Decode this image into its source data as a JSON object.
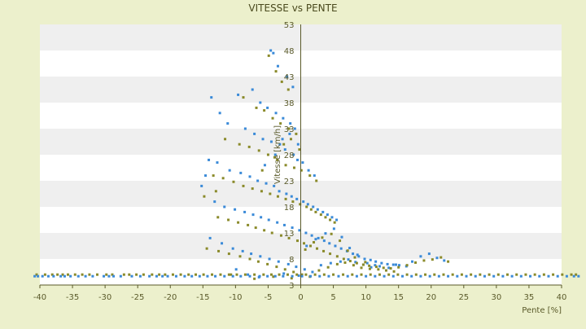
{
  "chart_data": {
    "type": "scatter",
    "title": "VITESSE vs PENTE",
    "xlabel": "Pente [%]",
    "ylabel": "Vitesse [km/h]",
    "xlim": [
      -40,
      40
    ],
    "ylim": [
      3,
      53
    ],
    "x_ticks": [
      "-40",
      "-35",
      "-30",
      "-25",
      "-20",
      "-15",
      "-10",
      "-5",
      "0",
      "5",
      "10",
      "15",
      "20",
      "25",
      "30",
      "35",
      "40"
    ],
    "y_ticks": [
      "3",
      "8",
      "13",
      "18",
      "23",
      "28",
      "33",
      "38",
      "43",
      "48",
      "53"
    ],
    "grid": "horizontal bands",
    "colors": {
      "background": "#ecf0cc",
      "plot_band_light": "#ffffff",
      "plot_band_dark": "#efefef",
      "axis": "#5a5a2a",
      "series_blue": "#3a8ad8",
      "series_olive": "#8a8a2a"
    },
    "series": [
      {
        "color": "#3a8ad8",
        "points": [
          [
            -4.6,
            48
          ],
          [
            -4.2,
            47.5
          ],
          [
            -3.5,
            45
          ],
          [
            -2.1,
            43
          ],
          [
            -1.2,
            41
          ],
          [
            -13.7,
            39
          ],
          [
            -9.6,
            39.5
          ],
          [
            -7.4,
            40.5
          ],
          [
            -6.2,
            38
          ],
          [
            -5.1,
            37
          ],
          [
            -3.8,
            36
          ],
          [
            -2.7,
            35
          ],
          [
            -1.6,
            34
          ],
          [
            -0.9,
            33
          ],
          [
            -12.4,
            36
          ],
          [
            -11.2,
            34
          ],
          [
            -8.5,
            33
          ],
          [
            -7.1,
            32
          ],
          [
            -5.8,
            31
          ],
          [
            -4.5,
            30.5
          ],
          [
            -3.2,
            30
          ],
          [
            -2.4,
            29
          ],
          [
            -1.1,
            28
          ],
          [
            -0.5,
            27
          ],
          [
            0.3,
            26.5
          ],
          [
            1.2,
            25
          ],
          [
            2.1,
            24
          ],
          [
            -14.1,
            27
          ],
          [
            -12.8,
            26.5
          ],
          [
            -10.9,
            25
          ],
          [
            -9.2,
            24.5
          ],
          [
            -7.8,
            23.8
          ],
          [
            -6.6,
            23
          ],
          [
            -5.3,
            22.5
          ],
          [
            -4.1,
            22
          ],
          [
            -3.3,
            21
          ],
          [
            -2.2,
            20.5
          ],
          [
            -1.4,
            20
          ],
          [
            -0.6,
            19.5
          ],
          [
            0.4,
            19
          ],
          [
            1.1,
            18.5
          ],
          [
            1.9,
            18
          ],
          [
            2.6,
            17.5
          ],
          [
            3.4,
            17
          ],
          [
            4.1,
            16.5
          ],
          [
            4.8,
            16
          ],
          [
            5.5,
            15.5
          ],
          [
            -13.2,
            19
          ],
          [
            -11.7,
            18
          ],
          [
            -10.1,
            17.5
          ],
          [
            -8.6,
            17
          ],
          [
            -7.3,
            16.5
          ],
          [
            -6.1,
            16
          ],
          [
            -4.9,
            15.5
          ],
          [
            -3.6,
            15
          ],
          [
            -2.5,
            14.5
          ],
          [
            -1.3,
            14
          ],
          [
            -0.2,
            13.5
          ],
          [
            0.8,
            13
          ],
          [
            1.7,
            12.5
          ],
          [
            2.7,
            12
          ],
          [
            3.6,
            11.5
          ],
          [
            4.4,
            11
          ],
          [
            5.3,
            10.5
          ],
          [
            6.2,
            10
          ],
          [
            7.1,
            9.5
          ],
          [
            8.0,
            9
          ],
          [
            8.9,
            8.5
          ],
          [
            9.8,
            8
          ],
          [
            10.7,
            7.8
          ],
          [
            11.5,
            7.5
          ],
          [
            12.4,
            7.2
          ],
          [
            13.3,
            7
          ],
          [
            14.2,
            6.9
          ],
          [
            15.1,
            6.8
          ],
          [
            16.2,
            6.6
          ],
          [
            17.1,
            7.5
          ],
          [
            18.4,
            8.5
          ],
          [
            19.7,
            9
          ],
          [
            20.9,
            8.2
          ],
          [
            22.0,
            7.7
          ],
          [
            -13.9,
            12
          ],
          [
            -12.1,
            11
          ],
          [
            -10.4,
            10
          ],
          [
            -8.9,
            9.5
          ],
          [
            -7.6,
            9
          ],
          [
            -6.2,
            8.5
          ],
          [
            -4.8,
            8
          ],
          [
            -3.4,
            7.5
          ],
          [
            -1.9,
            7
          ],
          [
            -0.7,
            6.5
          ],
          [
            0.6,
            6
          ],
          [
            1.8,
            5.5
          ],
          [
            3.1,
            6.8
          ],
          [
            4.6,
            7.2
          ],
          [
            6.1,
            7.5
          ],
          [
            7.3,
            7.9
          ],
          [
            8.4,
            7.4
          ],
          [
            9.6,
            6.9
          ],
          [
            10.8,
            6.4
          ],
          [
            12.1,
            6.6
          ],
          [
            13.5,
            6.3
          ],
          [
            14.6,
            6.9
          ],
          [
            -9.9,
            6
          ],
          [
            -8.1,
            5
          ],
          [
            -6.4,
            4.5
          ],
          [
            -2.6,
            5.2
          ],
          [
            -0.3,
            4.8
          ],
          [
            0.9,
            10.5
          ],
          [
            2.3,
            11.8
          ],
          [
            3.8,
            12.9
          ],
          [
            5.1,
            13.8
          ],
          [
            6.3,
            12.2
          ],
          [
            7.5,
            10.1
          ],
          [
            8.7,
            8.8
          ],
          [
            10.2,
            7.2
          ],
          [
            11.4,
            6.8
          ],
          [
            -15.2,
            22
          ],
          [
            -14.6,
            24
          ],
          [
            -5.5,
            26
          ],
          [
            -3.9,
            28
          ],
          [
            -2.8,
            31
          ],
          [
            -1.7,
            32
          ],
          [
            -0.4,
            30
          ]
        ]
      },
      {
        "color": "#8a8a2a",
        "points": [
          [
            -4.9,
            47
          ],
          [
            -3.8,
            44
          ],
          [
            -2.9,
            42
          ],
          [
            -1.9,
            40.5
          ],
          [
            -8.8,
            39
          ],
          [
            -6.8,
            37
          ],
          [
            -5.6,
            36.5
          ],
          [
            -4.3,
            35
          ],
          [
            -3.1,
            34
          ],
          [
            -1.8,
            33
          ],
          [
            -0.7,
            32
          ],
          [
            -11.6,
            31
          ],
          [
            -9.4,
            30
          ],
          [
            -7.9,
            29.5
          ],
          [
            -6.4,
            28.8
          ],
          [
            -5.0,
            28
          ],
          [
            -3.6,
            27
          ],
          [
            -2.3,
            26
          ],
          [
            -1.0,
            25.5
          ],
          [
            0.1,
            25
          ],
          [
            1.4,
            24
          ],
          [
            2.4,
            23
          ],
          [
            -13.4,
            24
          ],
          [
            -11.9,
            23.5
          ],
          [
            -10.3,
            22.8
          ],
          [
            -8.8,
            22
          ],
          [
            -7.4,
            21.5
          ],
          [
            -6.0,
            21
          ],
          [
            -4.7,
            20.5
          ],
          [
            -3.5,
            20
          ],
          [
            -2.3,
            19.5
          ],
          [
            -1.2,
            19
          ],
          [
            -0.1,
            18.5
          ],
          [
            0.9,
            18
          ],
          [
            1.6,
            17.5
          ],
          [
            2.3,
            17
          ],
          [
            3.1,
            16.5
          ],
          [
            3.8,
            16
          ],
          [
            4.5,
            15.5
          ],
          [
            5.2,
            15
          ],
          [
            -12.7,
            16
          ],
          [
            -11.1,
            15.5
          ],
          [
            -9.6,
            15
          ],
          [
            -8.1,
            14.5
          ],
          [
            -6.9,
            14
          ],
          [
            -5.6,
            13.5
          ],
          [
            -4.4,
            13
          ],
          [
            -3.0,
            12.5
          ],
          [
            -1.8,
            12
          ],
          [
            -0.5,
            11.5
          ],
          [
            0.5,
            11
          ],
          [
            1.5,
            10.5
          ],
          [
            2.5,
            10
          ],
          [
            3.5,
            9.5
          ],
          [
            4.5,
            9
          ],
          [
            5.6,
            8.5
          ],
          [
            6.6,
            8
          ],
          [
            7.6,
            7.6
          ],
          [
            8.6,
            7.2
          ],
          [
            9.6,
            6.9
          ],
          [
            10.5,
            6.7
          ],
          [
            11.6,
            6.5
          ],
          [
            12.7,
            6.3
          ],
          [
            13.8,
            6.2
          ],
          [
            15.0,
            6.4
          ],
          [
            16.3,
            6.8
          ],
          [
            17.6,
            7.3
          ],
          [
            18.9,
            7.7
          ],
          [
            20.2,
            7.9
          ],
          [
            21.5,
            8.3
          ],
          [
            22.6,
            7.5
          ],
          [
            -14.4,
            10
          ],
          [
            -12.6,
            9.5
          ],
          [
            -11.0,
            9
          ],
          [
            -9.3,
            8.5
          ],
          [
            -7.8,
            8
          ],
          [
            -6.5,
            7.5
          ],
          [
            -5.1,
            7
          ],
          [
            -3.7,
            6.5
          ],
          [
            -2.4,
            6
          ],
          [
            -1.1,
            5.5
          ],
          [
            0.2,
            5
          ],
          [
            1.4,
            4.6
          ],
          [
            2.8,
            5.8
          ],
          [
            4.2,
            6.4
          ],
          [
            5.6,
            7
          ],
          [
            6.8,
            7.3
          ],
          [
            8.1,
            6.8
          ],
          [
            9.3,
            6.3
          ],
          [
            10.6,
            6.1
          ],
          [
            11.9,
            6.0
          ],
          [
            13.1,
            5.8
          ],
          [
            14.3,
            5.6
          ],
          [
            -10.7,
            5
          ],
          [
            -7.1,
            4.2
          ],
          [
            -4.2,
            4.6
          ],
          [
            -1.4,
            4.3
          ],
          [
            0.7,
            9.8
          ],
          [
            2.0,
            11.2
          ],
          [
            3.3,
            12.1
          ],
          [
            4.7,
            12.8
          ],
          [
            6.0,
            11.5
          ],
          [
            7.2,
            9.6
          ],
          [
            8.3,
            8.3
          ],
          [
            9.9,
            7.4
          ],
          [
            -14.8,
            20
          ],
          [
            -13.0,
            21
          ],
          [
            -5.9,
            25
          ],
          [
            -4.0,
            27.5
          ],
          [
            -2.6,
            30
          ],
          [
            -1.5,
            31
          ],
          [
            -0.2,
            29
          ]
        ]
      }
    ],
    "baseline": {
      "y": 5,
      "x_blue": [
        -40.8,
        -40.3,
        -39.6,
        -38.7,
        -37.9,
        -36.8,
        -36.2,
        -35.3,
        -34.1,
        -33.0,
        -31.9,
        -30.2,
        -29.4,
        -28.7,
        -27.6,
        -25.9,
        -24.6,
        -23.2,
        -22.1,
        -21.2,
        -20.4,
        -19.1,
        -17.8,
        -16.7,
        -15.5,
        -14.3,
        -13.1,
        -11.7,
        -10.4,
        -9.2,
        -7.8,
        -6.3,
        -5.1,
        -3.9,
        -2.7,
        -1.3,
        0.2,
        1.5,
        2.9,
        4.3,
        5.8,
        7.2,
        8.6,
        10.0,
        11.4,
        12.8,
        14.2,
        15.6,
        17.0,
        18.4,
        19.8,
        21.2,
        22.6,
        24.0,
        25.4,
        26.8,
        28.2,
        29.6,
        31.0,
        32.4,
        33.8,
        35.2,
        36.6,
        38.0,
        39.4,
        40.8,
        41.9,
        42.6
      ],
      "x_olive": [
        -40.5,
        -39.2,
        -38.1,
        -37.3,
        -36.5,
        -35.7,
        -34.6,
        -33.5,
        -32.4,
        -31.2,
        -29.8,
        -28.9,
        -27.1,
        -26.3,
        -25.2,
        -24.1,
        -22.8,
        -21.7,
        -20.8,
        -19.6,
        -18.4,
        -17.2,
        -16.1,
        -14.9,
        -13.6,
        -12.3,
        -11.0,
        -9.8,
        -8.5,
        -7.1,
        -5.7,
        -4.5,
        -3.3,
        -2.0,
        -0.6,
        0.8,
        2.2,
        3.6,
        5.0,
        6.5,
        7.9,
        9.3,
        10.7,
        12.1,
        13.5,
        14.9,
        16.3,
        17.7,
        19.1,
        20.5,
        21.9,
        23.3,
        24.7,
        26.1,
        27.5,
        28.9,
        30.3,
        31.7,
        33.1,
        34.5,
        35.9,
        37.3,
        38.7,
        40.1,
        41.5,
        42.2
      ]
    }
  }
}
